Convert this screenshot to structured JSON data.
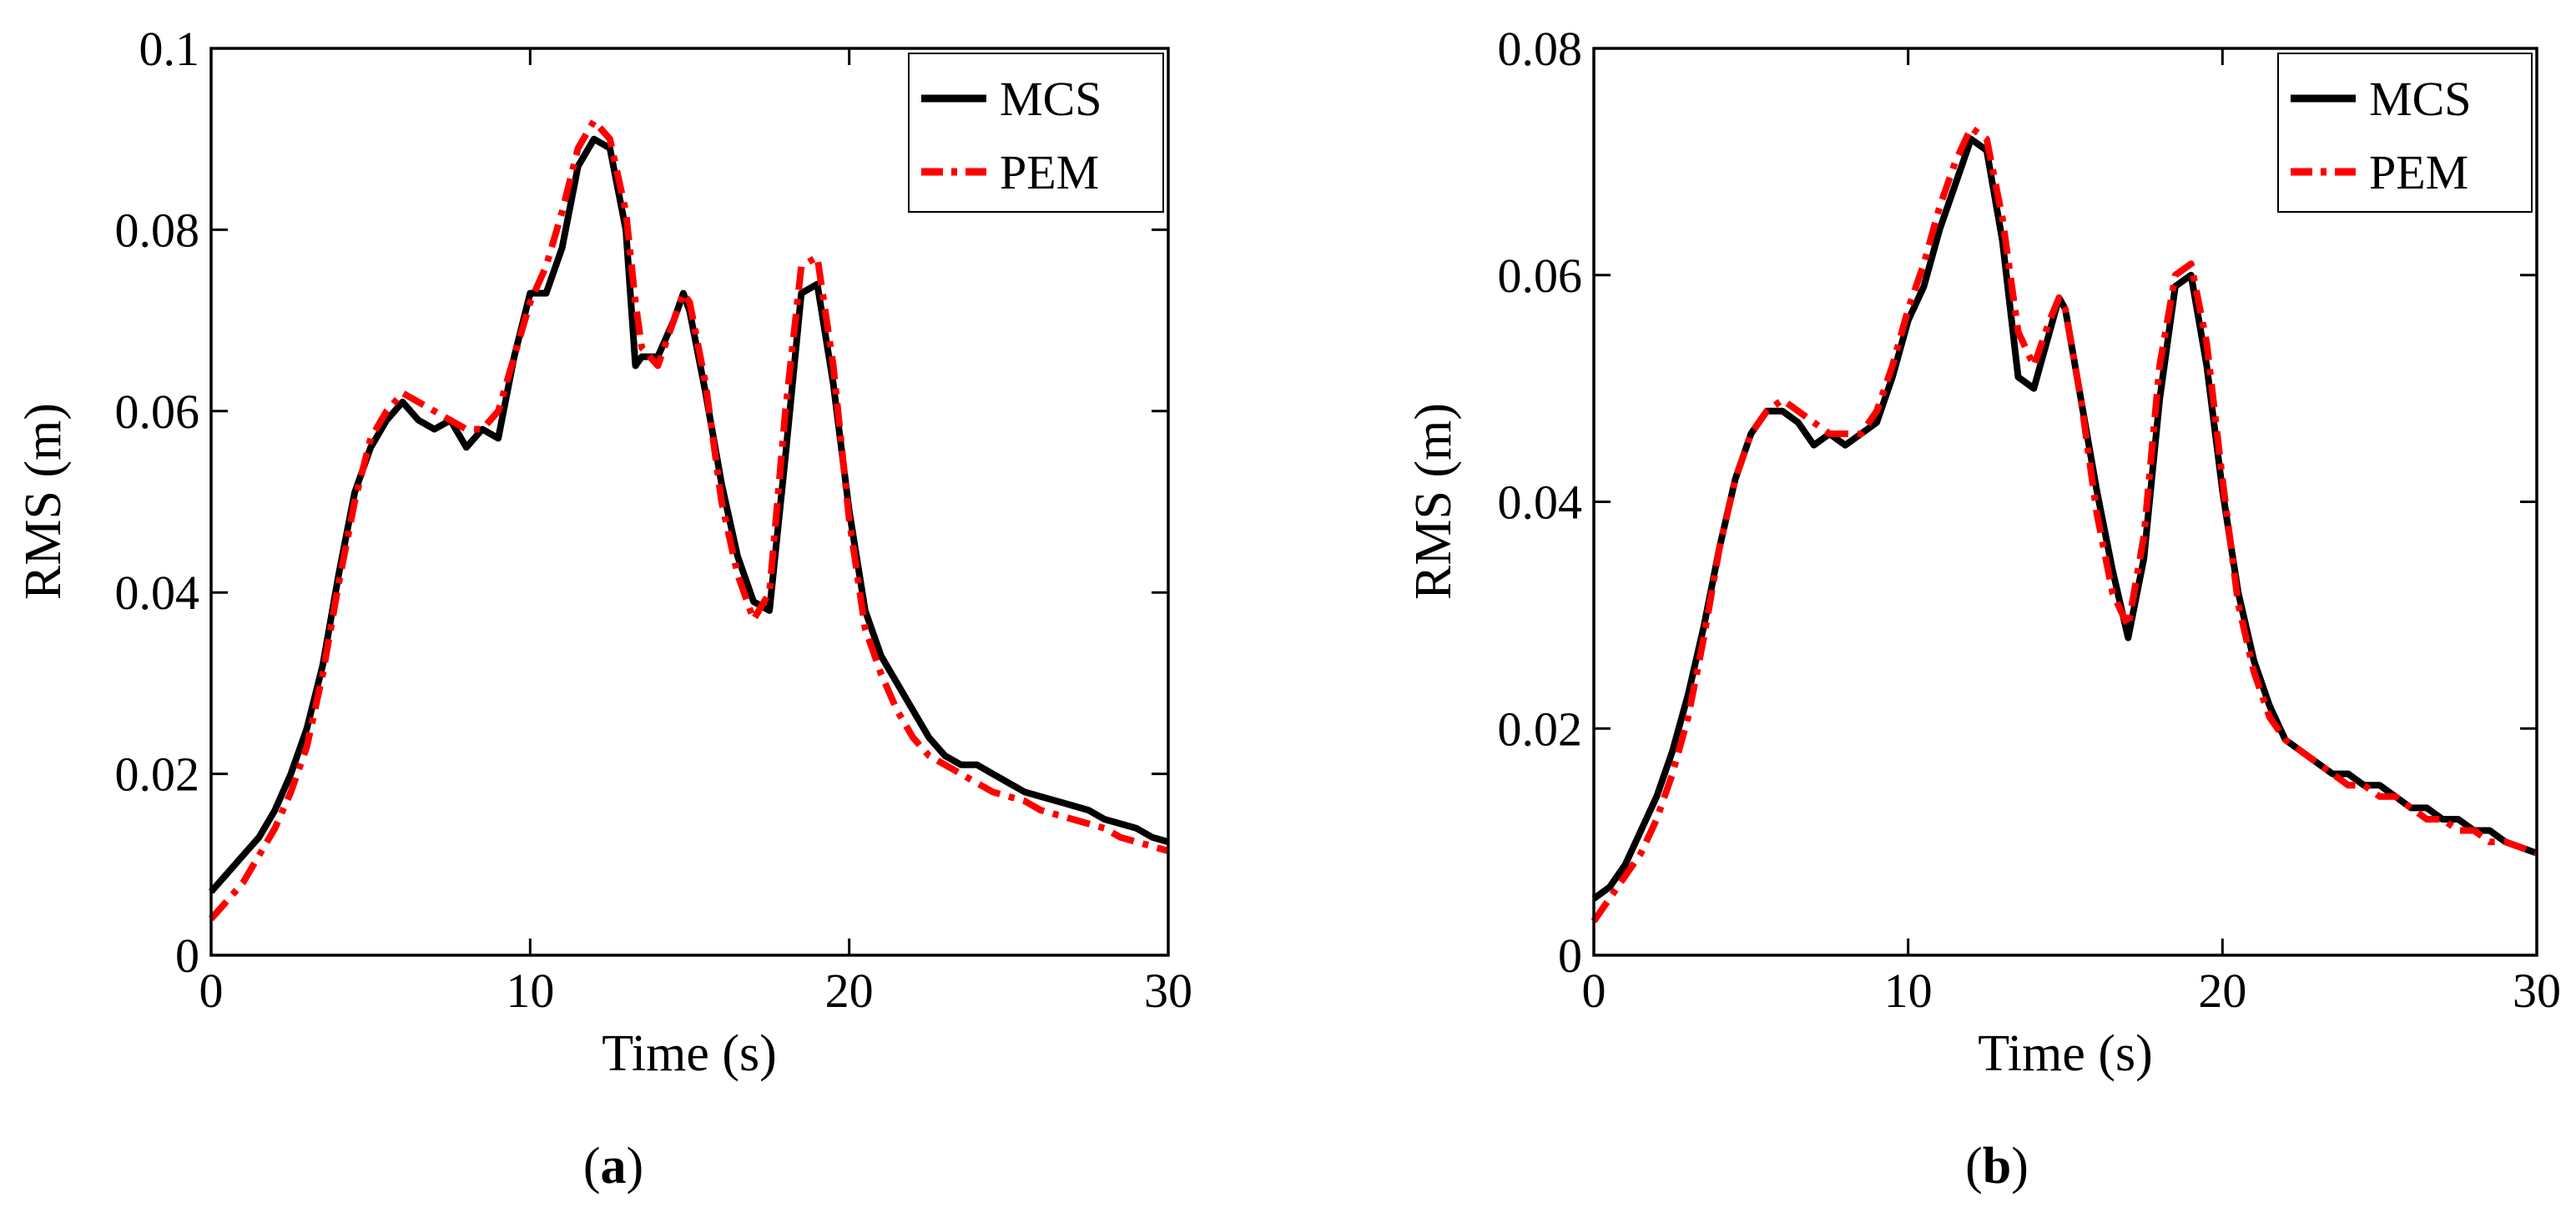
{
  "chart_data": [
    {
      "type": "line",
      "panel_label": "(a)",
      "panel_letter": "a",
      "xlabel": "Time (s)",
      "ylabel": "RMS (m)",
      "xlim": [
        0,
        30
      ],
      "ylim": [
        0,
        0.1
      ],
      "xticks": [
        0,
        10,
        20,
        30
      ],
      "xtick_labels": [
        "0",
        "10",
        "20",
        "30"
      ],
      "yticks": [
        0,
        0.02,
        0.04,
        0.06,
        0.08,
        0.1
      ],
      "ytick_labels": [
        "0",
        "0.02",
        "0.04",
        "0.06",
        "0.08",
        "0.1"
      ],
      "grid": false,
      "legend_position": "top-right",
      "series": [
        {
          "name": "MCS",
          "style": "solid",
          "color": "#000000",
          "x": [
            0,
            0.5,
            1,
            1.5,
            2,
            2.5,
            3,
            3.5,
            4,
            4.5,
            5,
            5.5,
            6,
            6.5,
            7,
            7.5,
            8,
            8.5,
            9,
            9.5,
            10,
            10.5,
            11,
            11.5,
            12,
            12.5,
            13,
            13.3,
            13.5,
            14,
            14.5,
            14.8,
            15,
            15.5,
            16,
            16.5,
            17,
            17.5,
            18,
            18.5,
            19,
            19.5,
            20,
            20.5,
            21,
            21.5,
            22,
            22.5,
            23,
            23.5,
            24,
            24.5,
            25,
            25.5,
            26,
            26.5,
            27,
            27.5,
            28,
            28.5,
            29,
            29.5,
            30
          ],
          "values": [
            0.007,
            0.009,
            0.011,
            0.013,
            0.016,
            0.02,
            0.025,
            0.032,
            0.042,
            0.051,
            0.056,
            0.059,
            0.061,
            0.059,
            0.058,
            0.059,
            0.056,
            0.058,
            0.057,
            0.066,
            0.073,
            0.073,
            0.078,
            0.087,
            0.09,
            0.089,
            0.08,
            0.065,
            0.066,
            0.066,
            0.07,
            0.073,
            0.071,
            0.062,
            0.052,
            0.044,
            0.039,
            0.038,
            0.055,
            0.073,
            0.074,
            0.063,
            0.049,
            0.038,
            0.033,
            0.03,
            0.027,
            0.024,
            0.022,
            0.021,
            0.021,
            0.02,
            0.019,
            0.018,
            0.0175,
            0.017,
            0.0165,
            0.016,
            0.015,
            0.0145,
            0.014,
            0.013,
            0.0125
          ]
        },
        {
          "name": "PEM",
          "style": "dashdot",
          "color": "#ff0000",
          "x": [
            0,
            0.5,
            1,
            1.5,
            2,
            2.5,
            3,
            3.5,
            4,
            4.5,
            5,
            5.5,
            6,
            6.5,
            7,
            7.5,
            8,
            8.5,
            9,
            9.5,
            10,
            10.5,
            11,
            11.5,
            12,
            12.5,
            13,
            13.3,
            13.5,
            14,
            14.5,
            14.8,
            15,
            15.5,
            16,
            16.5,
            17,
            17.5,
            18,
            18.5,
            19,
            19.5,
            20,
            20.5,
            21,
            21.5,
            22,
            22.5,
            23,
            23.5,
            24,
            24.5,
            25,
            25.5,
            26,
            26.5,
            27,
            27.5,
            28,
            28.5,
            29,
            29.5,
            30
          ],
          "values": [
            0.004,
            0.006,
            0.008,
            0.011,
            0.014,
            0.018,
            0.023,
            0.031,
            0.041,
            0.05,
            0.057,
            0.06,
            0.062,
            0.061,
            0.06,
            0.059,
            0.058,
            0.058,
            0.06,
            0.066,
            0.072,
            0.076,
            0.082,
            0.089,
            0.092,
            0.09,
            0.082,
            0.072,
            0.067,
            0.065,
            0.07,
            0.073,
            0.072,
            0.063,
            0.05,
            0.042,
            0.037,
            0.04,
            0.06,
            0.076,
            0.077,
            0.065,
            0.048,
            0.036,
            0.031,
            0.027,
            0.024,
            0.022,
            0.021,
            0.02,
            0.019,
            0.018,
            0.0175,
            0.017,
            0.016,
            0.0155,
            0.015,
            0.0145,
            0.014,
            0.013,
            0.0125,
            0.012,
            0.0115
          ]
        }
      ]
    },
    {
      "type": "line",
      "panel_label": "(b)",
      "panel_letter": "b",
      "xlabel": "Time (s)",
      "ylabel": "RMS (m)",
      "xlim": [
        0,
        30
      ],
      "ylim": [
        0,
        0.08
      ],
      "xticks": [
        0,
        10,
        20,
        30
      ],
      "xtick_labels": [
        "0",
        "10",
        "20",
        "30"
      ],
      "yticks": [
        0,
        0.02,
        0.04,
        0.06,
        0.08
      ],
      "ytick_labels": [
        "0",
        "0.02",
        "0.04",
        "0.06",
        "0.08"
      ],
      "grid": false,
      "legend_position": "top-right",
      "series": [
        {
          "name": "MCS",
          "style": "solid",
          "color": "#000000",
          "x": [
            0,
            0.5,
            1,
            1.5,
            2,
            2.5,
            3,
            3.5,
            4,
            4.5,
            5,
            5.5,
            6,
            6.5,
            7,
            7.5,
            8,
            8.5,
            9,
            9.5,
            10,
            10.5,
            11,
            11.5,
            12,
            12.5,
            13,
            13.5,
            14,
            14.5,
            14.8,
            15,
            15.5,
            16,
            16.5,
            17,
            17.5,
            18,
            18.5,
            19,
            19.5,
            20,
            20.5,
            21,
            21.5,
            22,
            22.5,
            23,
            23.5,
            24,
            24.5,
            25,
            25.5,
            26,
            26.5,
            27,
            27.5,
            28,
            28.5,
            29,
            29.5,
            30
          ],
          "values": [
            0.005,
            0.006,
            0.008,
            0.011,
            0.014,
            0.018,
            0.023,
            0.029,
            0.036,
            0.042,
            0.046,
            0.048,
            0.048,
            0.047,
            0.045,
            0.046,
            0.045,
            0.046,
            0.047,
            0.051,
            0.056,
            0.059,
            0.064,
            0.068,
            0.072,
            0.071,
            0.063,
            0.051,
            0.05,
            0.055,
            0.058,
            0.057,
            0.049,
            0.041,
            0.034,
            0.028,
            0.035,
            0.049,
            0.059,
            0.06,
            0.052,
            0.041,
            0.032,
            0.026,
            0.022,
            0.019,
            0.018,
            0.017,
            0.016,
            0.016,
            0.015,
            0.015,
            0.014,
            0.013,
            0.013,
            0.012,
            0.012,
            0.011,
            0.011,
            0.01,
            0.0095,
            0.009
          ]
        },
        {
          "name": "PEM",
          "style": "dashdot",
          "color": "#ff0000",
          "x": [
            0,
            0.5,
            1,
            1.5,
            2,
            2.5,
            3,
            3.5,
            4,
            4.5,
            5,
            5.5,
            6,
            6.5,
            7,
            7.5,
            8,
            8.5,
            9,
            9.5,
            10,
            10.5,
            11,
            11.5,
            12,
            12.5,
            13,
            13.5,
            14,
            14.5,
            14.8,
            15,
            15.5,
            16,
            16.5,
            17,
            17.5,
            18,
            18.5,
            19,
            19.5,
            20,
            20.5,
            21,
            21.5,
            22,
            22.5,
            23,
            23.5,
            24,
            24.5,
            25,
            25.5,
            26,
            26.5,
            27,
            27.5,
            28,
            28.5,
            29,
            29.5,
            30
          ],
          "values": [
            0.003,
            0.005,
            0.007,
            0.009,
            0.012,
            0.016,
            0.021,
            0.028,
            0.036,
            0.042,
            0.046,
            0.048,
            0.049,
            0.048,
            0.047,
            0.046,
            0.046,
            0.046,
            0.048,
            0.052,
            0.057,
            0.061,
            0.066,
            0.07,
            0.073,
            0.072,
            0.065,
            0.055,
            0.052,
            0.056,
            0.058,
            0.057,
            0.049,
            0.039,
            0.032,
            0.029,
            0.037,
            0.052,
            0.06,
            0.061,
            0.054,
            0.042,
            0.031,
            0.025,
            0.021,
            0.019,
            0.018,
            0.017,
            0.016,
            0.015,
            0.015,
            0.014,
            0.014,
            0.013,
            0.012,
            0.012,
            0.011,
            0.011,
            0.01,
            0.01,
            0.0095,
            0.009
          ]
        }
      ]
    }
  ]
}
